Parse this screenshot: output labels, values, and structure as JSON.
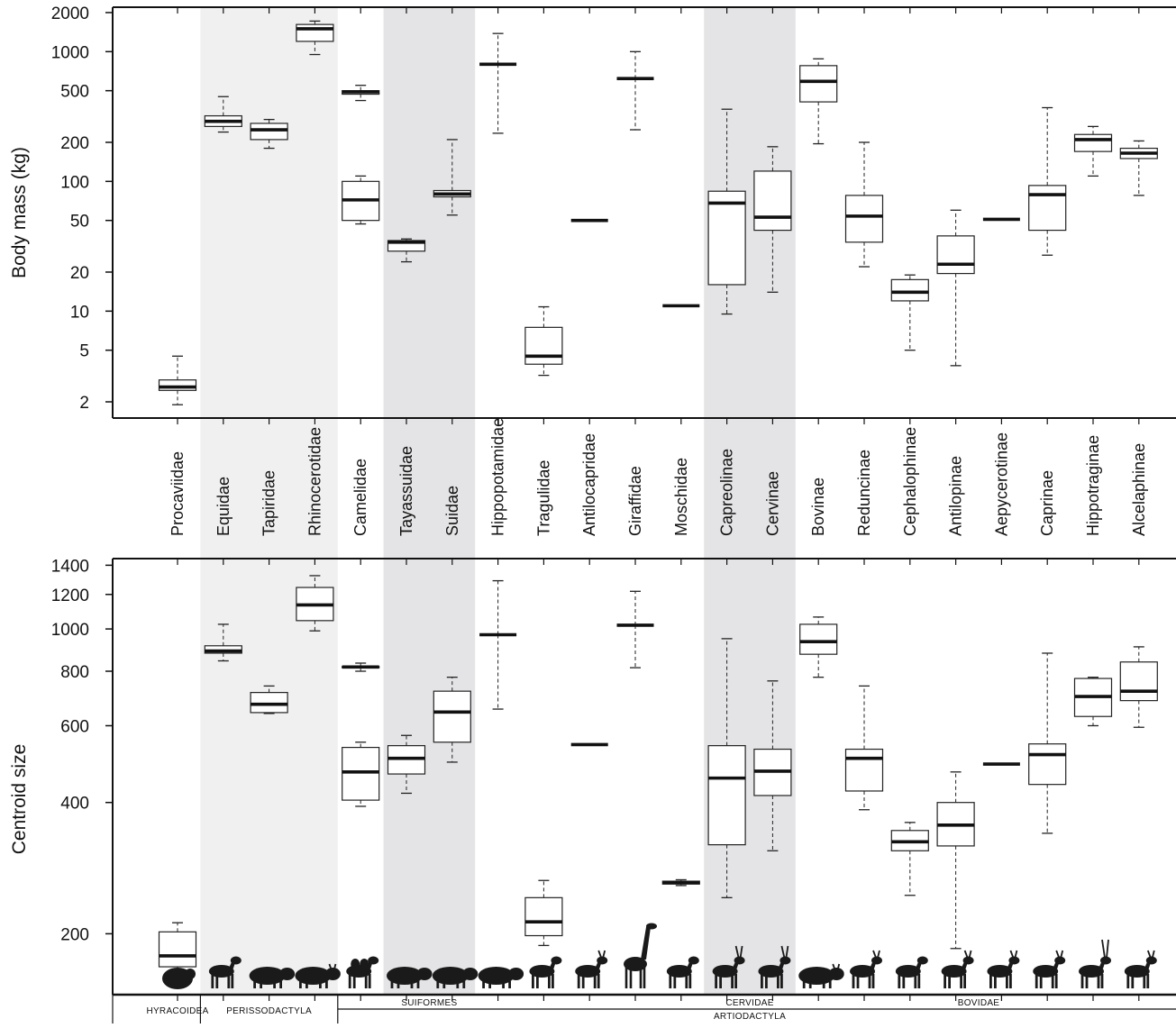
{
  "chart_data": [
    {
      "type": "boxplot",
      "ylabel": "Body mass (kg)",
      "yscale": "log",
      "ylim": [
        1.5,
        2200
      ],
      "ticks": [
        2,
        5,
        10,
        20,
        50,
        100,
        200,
        500,
        1000,
        2000
      ],
      "tick_labels": [
        "2",
        "5",
        "10",
        "20",
        "50",
        "100",
        "200",
        "500",
        "1000",
        "2000"
      ],
      "categories": [
        "Procaviidae",
        "Equidae",
        "Tapiridae",
        "Rhinocerotidae",
        "Camelidae",
        "Tayassuidae",
        "Suidae",
        "Hippopotamidae",
        "Tragulidae",
        "Antilocapridae",
        "Giraffidae",
        "Moschidae",
        "Capreolinae",
        "Cervinae",
        "Bovinae",
        "Reduncinae",
        "Cephalophinae",
        "Antilopinae",
        "Aepycerotinae",
        "Caprinae",
        "Hippotraginae",
        "Alcelaphinae"
      ],
      "boxes": [
        {
          "category": "Procaviidae",
          "min": 1.9,
          "q1": 2.45,
          "median": 2.6,
          "q3": 2.95,
          "max": 4.5
        },
        {
          "category": "Equidae",
          "min": 240,
          "q1": 265,
          "median": 290,
          "q3": 320,
          "max": 450
        },
        {
          "category": "Tapiridae",
          "min": 180,
          "q1": 210,
          "median": 250,
          "q3": 280,
          "max": 300
        },
        {
          "category": "Rhinocerotidae",
          "min": 950,
          "q1": 1200,
          "median": 1500,
          "q3": 1620,
          "max": 1720
        },
        {
          "category": "Camelidae",
          "min": 420,
          "q1": 470,
          "median": 490,
          "q3": 500,
          "max": 550
        },
        {
          "category": "Camelidae",
          "min": 47,
          "q1": 50,
          "median": 72,
          "q3": 100,
          "max": 110
        },
        {
          "category": "Tayassuidae",
          "min": 24,
          "q1": 29,
          "median": 34,
          "q3": 35,
          "max": 36
        },
        {
          "category": "Suidae",
          "min": 55,
          "q1": 76,
          "median": 80,
          "q3": 85,
          "max": 210
        },
        {
          "category": "Hippopotamidae",
          "min": 235,
          "q1": 800,
          "median": 800,
          "q3": 800,
          "max": 1380
        },
        {
          "category": "Tragulidae",
          "min": 3.2,
          "q1": 3.9,
          "median": 4.5,
          "q3": 7.5,
          "max": 10.8
        },
        {
          "category": "Antilocapridae",
          "min": 50,
          "q1": 50,
          "median": 50,
          "q3": 50,
          "max": 50
        },
        {
          "category": "Giraffidae",
          "min": 250,
          "q1": 620,
          "median": 620,
          "q3": 620,
          "max": 1000
        },
        {
          "category": "Moschidae",
          "min": 11,
          "q1": 11,
          "median": 11,
          "q3": 11,
          "max": 11
        },
        {
          "category": "Capreolinae",
          "min": 9.5,
          "q1": 16,
          "median": 68,
          "q3": 84,
          "max": 360
        },
        {
          "category": "Cervinae",
          "min": 14,
          "q1": 42,
          "median": 53,
          "q3": 120,
          "max": 185
        },
        {
          "category": "Bovinae",
          "min": 195,
          "q1": 410,
          "median": 590,
          "q3": 780,
          "max": 880
        },
        {
          "category": "Reduncinae",
          "min": 22,
          "q1": 34,
          "median": 54,
          "q3": 78,
          "max": 200
        },
        {
          "category": "Cephalophinae",
          "min": 5,
          "q1": 12,
          "median": 14,
          "q3": 17.5,
          "max": 19
        },
        {
          "category": "Antilopinae",
          "min": 3.8,
          "q1": 19.5,
          "median": 23,
          "q3": 38,
          "max": 60
        },
        {
          "category": "Aepycerotinae",
          "min": 51,
          "q1": 51,
          "median": 51,
          "q3": 51,
          "max": 51
        },
        {
          "category": "Caprinae",
          "min": 27,
          "q1": 42,
          "median": 79,
          "q3": 93,
          "max": 370
        },
        {
          "category": "Hippotraginae",
          "min": 110,
          "q1": 170,
          "median": 210,
          "q3": 230,
          "max": 265
        },
        {
          "category": "Alcelaphinae",
          "min": 78,
          "q1": 150,
          "median": 165,
          "q3": 180,
          "max": 205
        }
      ]
    },
    {
      "type": "boxplot",
      "ylabel": "Centroid size",
      "yscale": "log",
      "ylim": [
        145,
        1450
      ],
      "ticks": [
        200,
        400,
        600,
        800,
        1000,
        1200,
        1400
      ],
      "tick_labels": [
        "200",
        "400",
        "600",
        "800",
        "1000",
        "1200",
        "1400"
      ],
      "boxes": [
        {
          "category": "Procaviidae",
          "min": 165,
          "q1": 168,
          "median": 178,
          "q3": 202,
          "max": 212
        },
        {
          "category": "Equidae",
          "min": 845,
          "q1": 880,
          "median": 890,
          "q3": 915,
          "max": 1025
        },
        {
          "category": "Tapiridae",
          "min": 640,
          "q1": 643,
          "median": 672,
          "q3": 715,
          "max": 740
        },
        {
          "category": "Rhinocerotidae",
          "min": 990,
          "q1": 1045,
          "median": 1135,
          "q3": 1245,
          "max": 1325
        },
        {
          "category": "Camelidae",
          "min": 800,
          "q1": 815,
          "median": 818,
          "q3": 820,
          "max": 835
        },
        {
          "category": "Camelidae",
          "min": 392,
          "q1": 405,
          "median": 470,
          "q3": 535,
          "max": 550
        },
        {
          "category": "Tayassuidae",
          "min": 420,
          "q1": 465,
          "median": 505,
          "q3": 540,
          "max": 570
        },
        {
          "category": "Suidae",
          "min": 495,
          "q1": 550,
          "median": 645,
          "q3": 720,
          "max": 775
        },
        {
          "category": "Hippopotamidae",
          "min": 655,
          "q1": 970,
          "median": 970,
          "q3": 970,
          "max": 1290
        },
        {
          "category": "Tragulidae",
          "min": 188,
          "q1": 198,
          "median": 213,
          "q3": 242,
          "max": 265
        },
        {
          "category": "Antilocapridae",
          "min": 543,
          "q1": 543,
          "median": 543,
          "q3": 543,
          "max": 543
        },
        {
          "category": "Giraffidae",
          "min": 815,
          "q1": 1020,
          "median": 1020,
          "q3": 1020,
          "max": 1220
        },
        {
          "category": "Moschidae",
          "min": 258,
          "q1": 260,
          "median": 262,
          "q3": 264,
          "max": 266
        },
        {
          "category": "Capreolinae",
          "min": 242,
          "q1": 320,
          "median": 455,
          "q3": 540,
          "max": 950
        },
        {
          "category": "Cervinae",
          "min": 310,
          "q1": 415,
          "median": 472,
          "q3": 530,
          "max": 760
        },
        {
          "category": "Bovinae",
          "min": 775,
          "q1": 875,
          "median": 935,
          "q3": 1025,
          "max": 1065
        },
        {
          "category": "Reduncinae",
          "min": 385,
          "q1": 425,
          "median": 505,
          "q3": 530,
          "max": 740
        },
        {
          "category": "Cephalophinae",
          "min": 245,
          "q1": 310,
          "median": 325,
          "q3": 345,
          "max": 360
        },
        {
          "category": "Antilopinae",
          "min": 185,
          "q1": 318,
          "median": 355,
          "q3": 400,
          "max": 470
        },
        {
          "category": "Aepycerotinae",
          "min": 490,
          "q1": 490,
          "median": 490,
          "q3": 490,
          "max": 490
        },
        {
          "category": "Caprinae",
          "min": 340,
          "q1": 440,
          "median": 515,
          "q3": 545,
          "max": 880
        },
        {
          "category": "Hippotraginae",
          "min": 600,
          "q1": 630,
          "median": 700,
          "q3": 770,
          "max": 775
        },
        {
          "category": "Alcelaphinae",
          "min": 595,
          "q1": 685,
          "median": 720,
          "q3": 840,
          "max": 910
        }
      ]
    }
  ],
  "taxonomy": {
    "row1": [
      {
        "label": "HYRACOIDEA",
        "from": 0,
        "to": 0
      },
      {
        "label": "PERISSODACTYLA",
        "from": 1,
        "to": 3
      },
      {
        "label": "SUIFORMES",
        "from": 5,
        "to": 6
      },
      {
        "label": "CERVIDAE",
        "from": 12,
        "to": 13
      },
      {
        "label": "BOVIDAE",
        "from": 14,
        "to": 21
      }
    ],
    "row2": [
      {
        "label": "ARTIODACTYLA",
        "from": 4,
        "to": 21
      }
    ]
  },
  "shading": [
    {
      "from": 1,
      "to": 3,
      "color": "#f0f0f1"
    },
    {
      "from": 5,
      "to": 6,
      "color": "#e4e4e6"
    },
    {
      "from": 12,
      "to": 13,
      "color": "#e4e4e6"
    }
  ],
  "silhouettes": [
    "hyrax-icon",
    "horse-icon",
    "tapir-icon",
    "rhino-icon",
    "camel-icon",
    "peccary-icon",
    "pig-icon",
    "hippo-icon",
    "chevrotain-icon",
    "pronghorn-icon",
    "giraffe-icon",
    "musk-deer-icon",
    "moose-icon",
    "deer-icon",
    "bison-icon",
    "kob-icon",
    "duiker-icon",
    "gazelle-icon",
    "impala-icon",
    "goat-icon",
    "oryx-icon",
    "wildebeest-icon"
  ]
}
